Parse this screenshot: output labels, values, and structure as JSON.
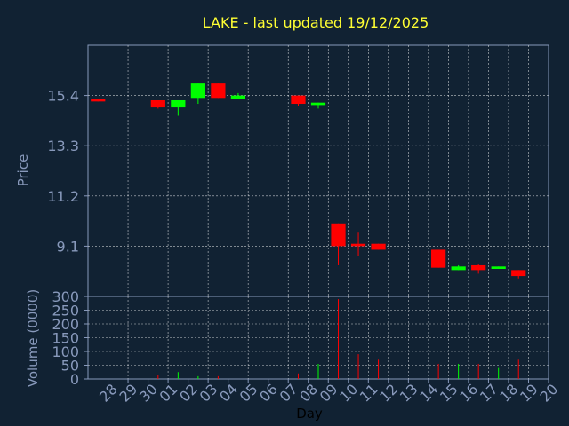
{
  "chart_data": {
    "type": "candlestick",
    "title": "LAKE - last updated 19/12/2025",
    "xlabel": "Day",
    "price_ylabel": "Price",
    "volume_ylabel": "Volume (0000)",
    "price_ticks": [
      "15.4",
      "13.3",
      "11.2",
      "9.1"
    ],
    "price_tick_values": [
      15.4,
      13.3,
      11.2,
      9.1
    ],
    "price_ylim": [
      7.0,
      17.5
    ],
    "volume_ticks": [
      "300",
      "250",
      "200",
      "150",
      "100",
      "50",
      "0"
    ],
    "volume_tick_values": [
      300,
      250,
      200,
      150,
      100,
      50,
      0
    ],
    "volume_ylim": [
      0,
      300
    ],
    "grid": true,
    "colors": {
      "background": "#112233",
      "up": "#00ff00",
      "down": "#ff0000",
      "grid": "#ffffff",
      "title": "#ffff33",
      "axis_text": "#8899bb"
    },
    "days": [
      "28",
      "29",
      "30",
      "01",
      "02",
      "03",
      "04",
      "05",
      "06",
      "07",
      "08",
      "09",
      "10",
      "11",
      "12",
      "13",
      "14",
      "15",
      "16",
      "17",
      "18",
      "19",
      "20"
    ],
    "candles": [
      {
        "day": "28",
        "open": 15.25,
        "close": 15.15,
        "high": 15.25,
        "low": 15.15,
        "volume": 0
      },
      {
        "day": "29",
        "volume": 0
      },
      {
        "day": "30",
        "volume": 0
      },
      {
        "day": "01",
        "open": 15.2,
        "close": 14.9,
        "high": 15.2,
        "low": 14.85,
        "volume": 15
      },
      {
        "day": "02",
        "open": 14.9,
        "close": 15.2,
        "high": 15.2,
        "low": 14.55,
        "volume": 25
      },
      {
        "day": "03",
        "open": 15.3,
        "close": 15.9,
        "high": 15.9,
        "low": 15.05,
        "volume": 10
      },
      {
        "day": "04",
        "open": 15.9,
        "close": 15.3,
        "high": 15.9,
        "low": 15.3,
        "volume": 10
      },
      {
        "day": "05",
        "open": 15.25,
        "close": 15.4,
        "high": 15.5,
        "low": 15.25,
        "volume": 0
      },
      {
        "day": "06",
        "volume": 0
      },
      {
        "day": "07",
        "volume": 0
      },
      {
        "day": "08",
        "open": 15.4,
        "close": 15.05,
        "high": 15.4,
        "low": 14.95,
        "volume": 20
      },
      {
        "day": "09",
        "open": 15.0,
        "close": 15.1,
        "high": 15.1,
        "low": 14.85,
        "volume": 55
      },
      {
        "day": "10",
        "open": 10.05,
        "close": 9.1,
        "high": 10.05,
        "low": 8.3,
        "volume": 290
      },
      {
        "day": "11",
        "open": 9.2,
        "close": 9.1,
        "high": 9.7,
        "low": 8.7,
        "volume": 90
      },
      {
        "day": "12",
        "open": 9.2,
        "close": 8.95,
        "high": 9.2,
        "low": 8.95,
        "volume": 70
      },
      {
        "day": "13",
        "volume": 0
      },
      {
        "day": "14",
        "volume": 0
      },
      {
        "day": "15",
        "open": 8.95,
        "close": 8.2,
        "high": 8.95,
        "low": 8.2,
        "volume": 55
      },
      {
        "day": "16",
        "open": 8.1,
        "close": 8.25,
        "high": 8.3,
        "low": 8.1,
        "volume": 55
      },
      {
        "day": "17",
        "open": 8.3,
        "close": 8.1,
        "high": 8.35,
        "low": 7.95,
        "volume": 55
      },
      {
        "day": "18",
        "open": 8.15,
        "close": 8.25,
        "high": 8.25,
        "low": 8.15,
        "volume": 40
      },
      {
        "day": "19",
        "open": 8.1,
        "close": 7.85,
        "high": 8.1,
        "low": 7.75,
        "volume": 70
      },
      {
        "day": "20",
        "volume": 0
      }
    ]
  }
}
